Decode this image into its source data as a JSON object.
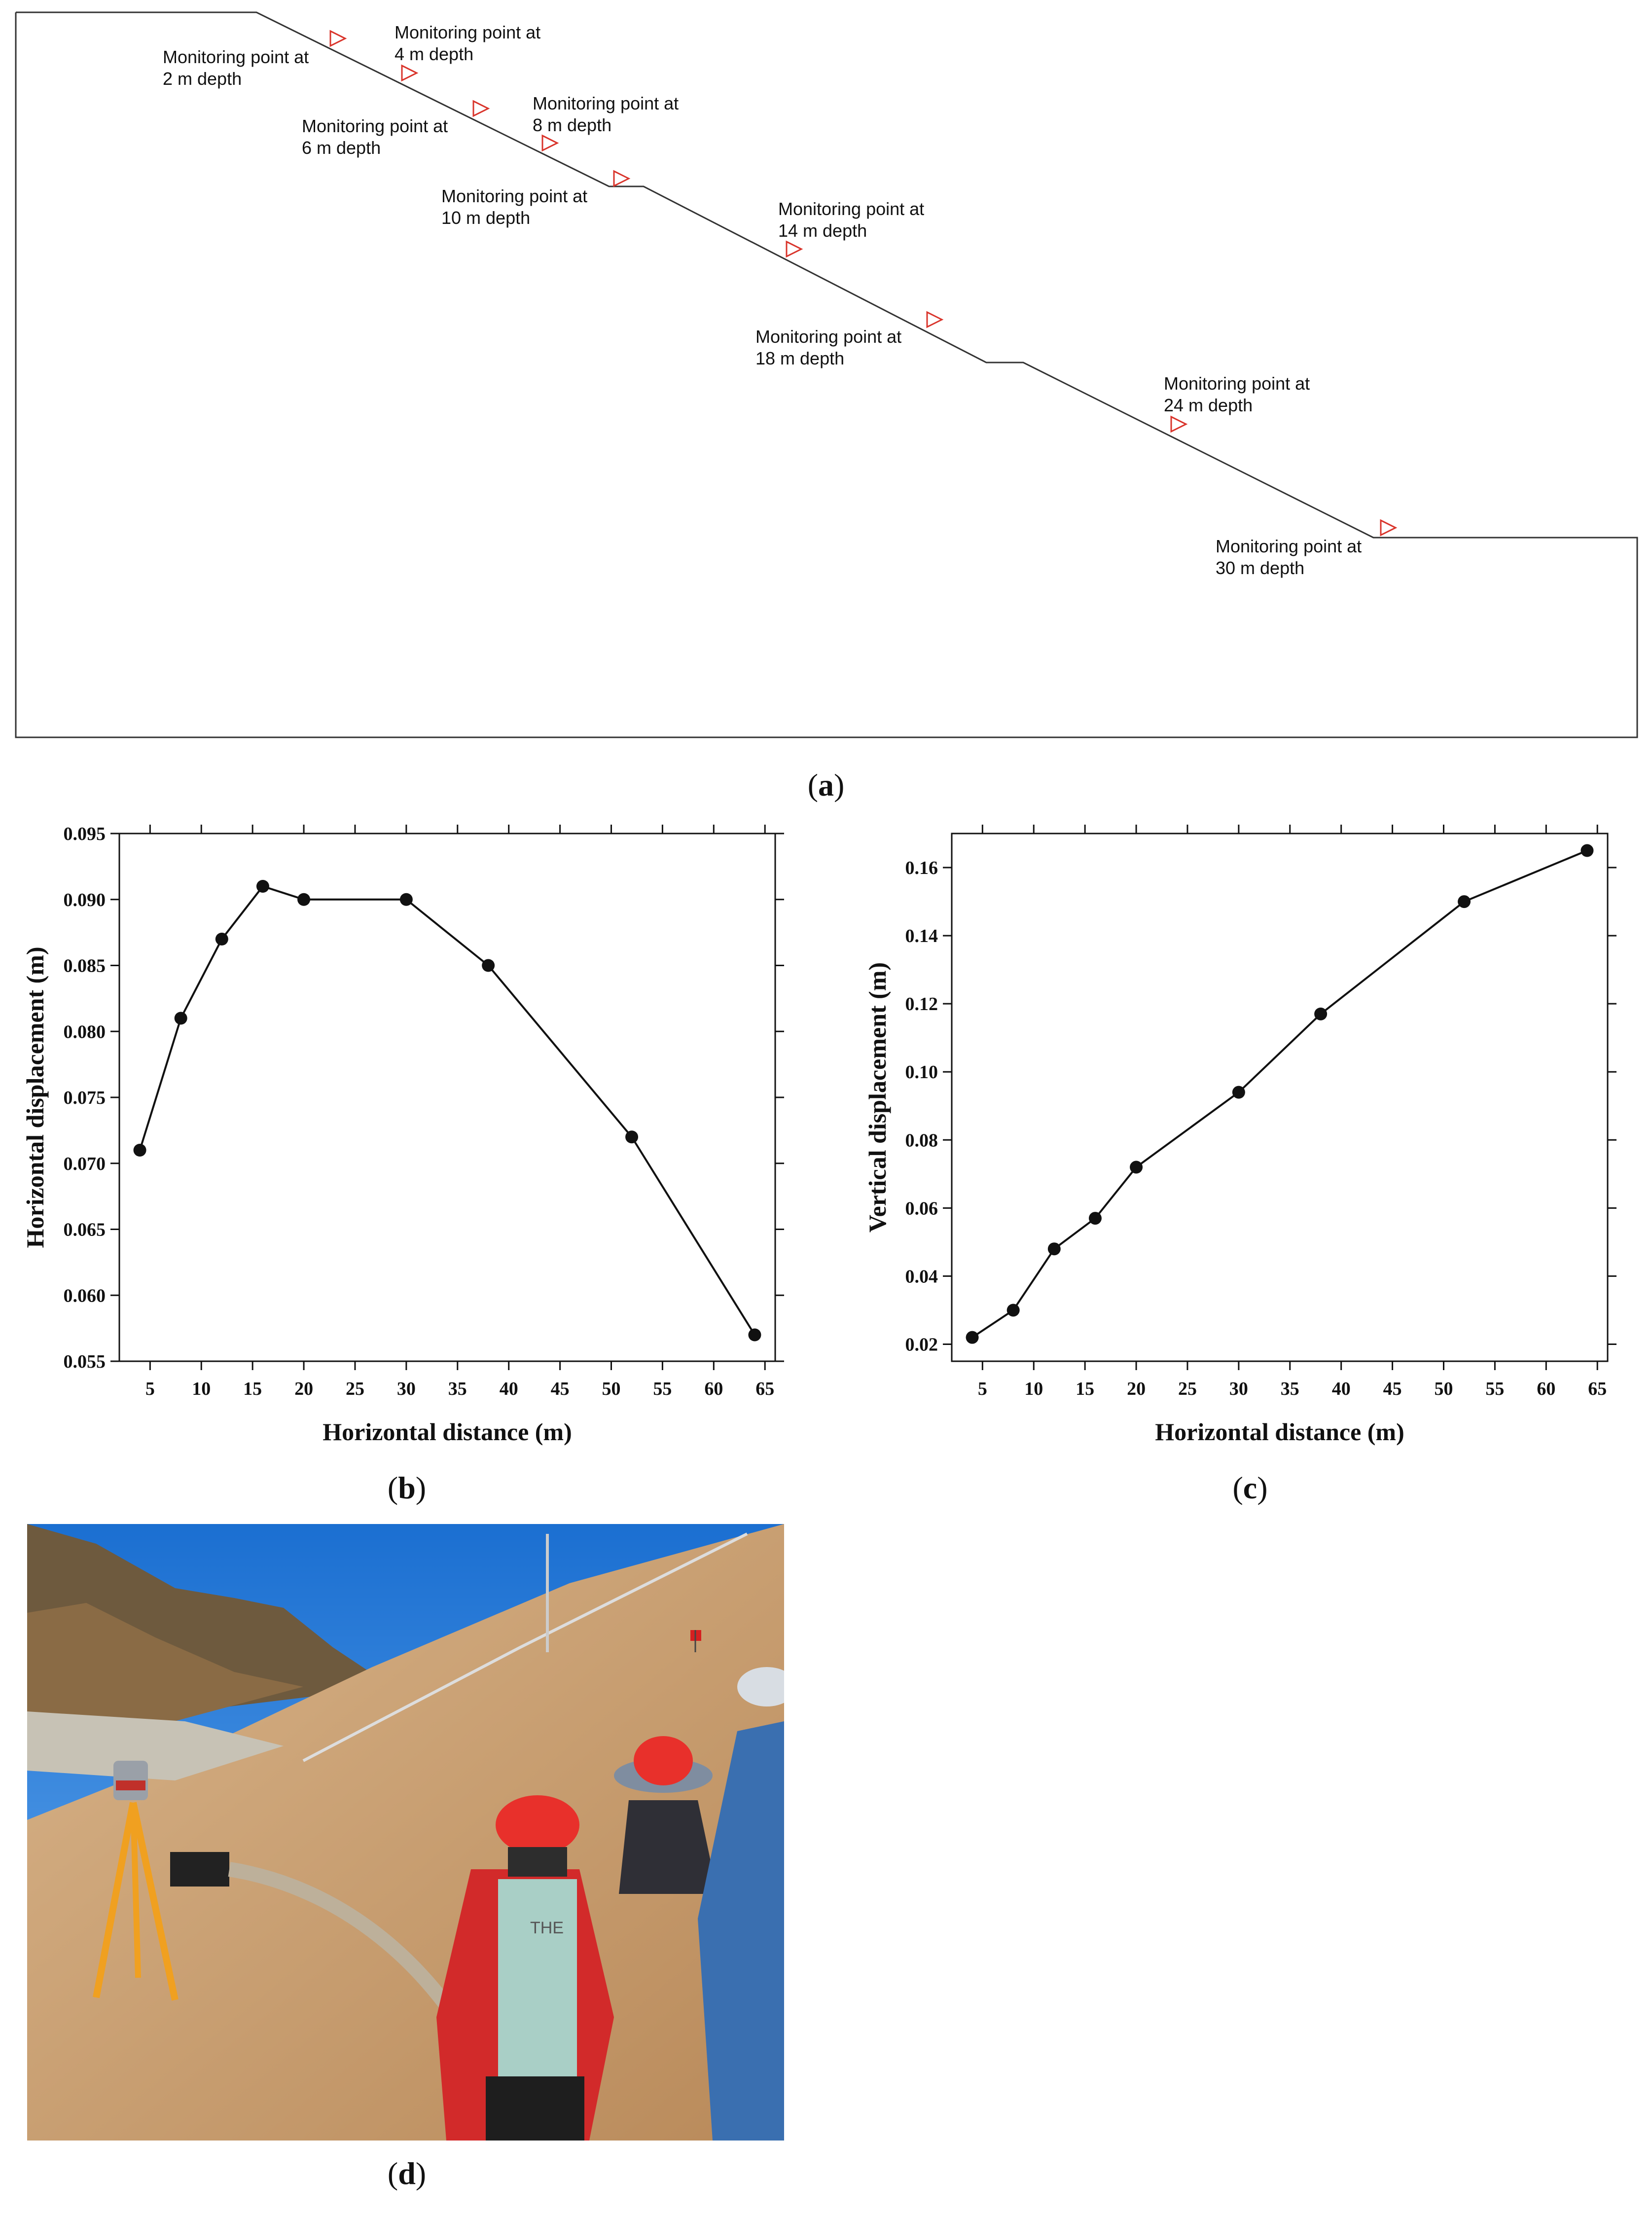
{
  "panel_a": {
    "caption": "a",
    "monitoring_points": [
      {
        "line1": "Monitoring point at",
        "line2": "2 m depth"
      },
      {
        "line1": "Monitoring point at",
        "line2": "4 m depth"
      },
      {
        "line1": "Monitoring point at",
        "line2": "6 m depth"
      },
      {
        "line1": "Monitoring point at",
        "line2": "8 m depth"
      },
      {
        "line1": "Monitoring point at",
        "line2": "10 m depth"
      },
      {
        "line1": "Monitoring point at",
        "line2": "14 m depth"
      },
      {
        "line1": "Monitoring point at",
        "line2": "18 m depth"
      },
      {
        "line1": "Monitoring point at",
        "line2": "24 m depth"
      },
      {
        "line1": "Monitoring point at",
        "line2": "30 m depth"
      }
    ],
    "marker_color": "#d9342b"
  },
  "chart_data": [
    {
      "type": "line",
      "caption": "b",
      "xlabel": "Horizontal distance (m)",
      "ylabel": "Horizontal displacement (m)",
      "x": [
        4,
        8,
        12,
        16,
        20,
        30,
        38,
        52,
        64
      ],
      "values": [
        0.071,
        0.081,
        0.087,
        0.091,
        0.09,
        0.09,
        0.085,
        0.072,
        0.057
      ],
      "xlim": [
        2,
        66
      ],
      "ylim": [
        0.055,
        0.095
      ],
      "xticks": [
        5,
        10,
        15,
        20,
        25,
        30,
        35,
        40,
        45,
        50,
        55,
        60,
        65
      ],
      "xtick_labels": [
        "5",
        "10",
        "15",
        "20",
        "25",
        "30",
        "35",
        "40",
        "45",
        "50",
        "55",
        "60",
        "65"
      ],
      "yticks": [
        0.055,
        0.06,
        0.065,
        0.07,
        0.075,
        0.08,
        0.085,
        0.09,
        0.095
      ],
      "ytick_labels": [
        "0.055",
        "0.060",
        "0.065",
        "0.070",
        "0.075",
        "0.080",
        "0.085",
        "0.090",
        "0.095"
      ],
      "grid": false
    },
    {
      "type": "line",
      "caption": "c",
      "xlabel": "Horizontal distance (m)",
      "ylabel": "Vertical displacement (m)",
      "x": [
        4,
        8,
        12,
        16,
        20,
        30,
        38,
        52,
        64
      ],
      "values": [
        0.022,
        0.03,
        0.048,
        0.057,
        0.072,
        0.094,
        0.117,
        0.15,
        0.165
      ],
      "xlim": [
        2,
        66
      ],
      "ylim": [
        0.015,
        0.17
      ],
      "xticks": [
        5,
        10,
        15,
        20,
        25,
        30,
        35,
        40,
        45,
        50,
        55,
        60,
        65
      ],
      "xtick_labels": [
        "5",
        "10",
        "15",
        "20",
        "25",
        "30",
        "35",
        "40",
        "45",
        "50",
        "55",
        "60",
        "65"
      ],
      "yticks": [
        0.02,
        0.04,
        0.06,
        0.08,
        0.1,
        0.12,
        0.14,
        0.16
      ],
      "ytick_labels": [
        "0.02",
        "0.04",
        "0.06",
        "0.08",
        "0.10",
        "0.12",
        "0.14",
        "0.16"
      ],
      "grid": false
    }
  ],
  "panel_d": {
    "caption": "d",
    "helmet_text": "",
    "shirt_text": "THE"
  }
}
